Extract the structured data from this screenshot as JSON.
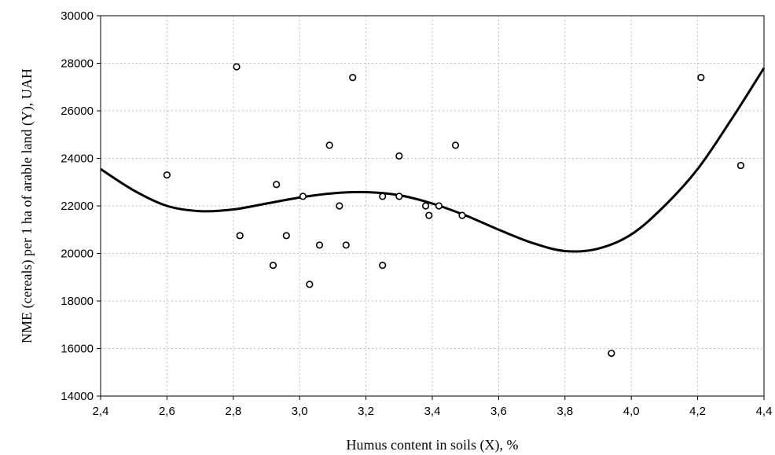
{
  "chart_data": {
    "type": "scatter",
    "xlabel": "Humus content in soils (X), %",
    "ylabel": "NME (cereals) per 1 ha of arable land (Y), UAH",
    "xlim": [
      2.4,
      4.4
    ],
    "ylim": [
      14000,
      30000
    ],
    "x_ticks": [
      "2,4",
      "2,6",
      "2,8",
      "3,0",
      "3,2",
      "3,4",
      "3,6",
      "3,8",
      "4,0",
      "4,2",
      "4,4"
    ],
    "y_ticks": [
      "14000",
      "16000",
      "18000",
      "20000",
      "22000",
      "24000",
      "26000",
      "28000",
      "30000"
    ],
    "grid": true,
    "points": [
      {
        "x": 2.6,
        "y": 23300
      },
      {
        "x": 2.81,
        "y": 27850
      },
      {
        "x": 2.82,
        "y": 20750
      },
      {
        "x": 2.92,
        "y": 19500
      },
      {
        "x": 2.93,
        "y": 22900
      },
      {
        "x": 2.96,
        "y": 20750
      },
      {
        "x": 3.01,
        "y": 22400
      },
      {
        "x": 3.03,
        "y": 18700
      },
      {
        "x": 3.06,
        "y": 20350
      },
      {
        "x": 3.09,
        "y": 24550
      },
      {
        "x": 3.12,
        "y": 22000
      },
      {
        "x": 3.14,
        "y": 20350
      },
      {
        "x": 3.16,
        "y": 27400
      },
      {
        "x": 3.25,
        "y": 22400
      },
      {
        "x": 3.25,
        "y": 19500
      },
      {
        "x": 3.3,
        "y": 24100
      },
      {
        "x": 3.3,
        "y": 22400
      },
      {
        "x": 3.38,
        "y": 22000
      },
      {
        "x": 3.39,
        "y": 21600
      },
      {
        "x": 3.42,
        "y": 22000
      },
      {
        "x": 3.47,
        "y": 24550
      },
      {
        "x": 3.49,
        "y": 21600
      },
      {
        "x": 3.94,
        "y": 15800
      },
      {
        "x": 4.21,
        "y": 27400
      },
      {
        "x": 4.33,
        "y": 23700
      }
    ],
    "fit_curve": [
      {
        "x": 2.4,
        "y": 23550
      },
      {
        "x": 2.5,
        "y": 22650
      },
      {
        "x": 2.6,
        "y": 22000
      },
      {
        "x": 2.7,
        "y": 21780
      },
      {
        "x": 2.8,
        "y": 21850
      },
      {
        "x": 2.9,
        "y": 22100
      },
      {
        "x": 3.0,
        "y": 22350
      },
      {
        "x": 3.1,
        "y": 22530
      },
      {
        "x": 3.2,
        "y": 22580
      },
      {
        "x": 3.3,
        "y": 22450
      },
      {
        "x": 3.4,
        "y": 22100
      },
      {
        "x": 3.5,
        "y": 21600
      },
      {
        "x": 3.6,
        "y": 21000
      },
      {
        "x": 3.7,
        "y": 20450
      },
      {
        "x": 3.8,
        "y": 20100
      },
      {
        "x": 3.9,
        "y": 20200
      },
      {
        "x": 4.0,
        "y": 20800
      },
      {
        "x": 4.1,
        "y": 22000
      },
      {
        "x": 4.2,
        "y": 23550
      },
      {
        "x": 4.3,
        "y": 25600
      },
      {
        "x": 4.4,
        "y": 27800
      }
    ]
  }
}
